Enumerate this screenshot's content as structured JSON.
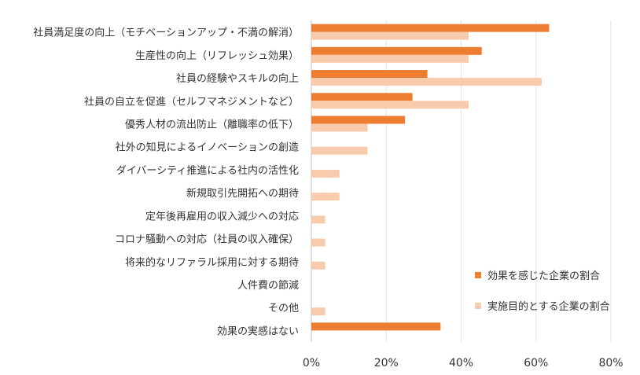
{
  "chart_data": {
    "type": "bar",
    "orientation": "horizontal",
    "categories": [
      "社員満足度の向上（モチベーションアップ・不満の解消）",
      "生産性の向上（リフレッシュ効果）",
      "社員の経験やスキルの向上",
      "社員の自立を促進（セルフマネジメントなど）",
      "優秀人材の流出防止（離職率の低下）",
      "社外の知見によるイノベーションの創造",
      "ダイバーシティ推進による社内の活性化",
      "新規取引先開拓への期待",
      "定年後再雇用の収入減少への対応",
      "コロナ騒動への対応（社員の収入確保）",
      "将来的なリファラル採用に対する期待",
      "人件費の節減",
      "その他",
      "効果の実感はない"
    ],
    "series": [
      {
        "name": "効果を感じた企業の割合",
        "color": "#ED7D31",
        "values": [
          63.5,
          45.5,
          31,
          27,
          25,
          0,
          0,
          0,
          0,
          0,
          0,
          0,
          0,
          34.5
        ]
      },
      {
        "name": "実施目的とする企業の割合",
        "color": "#F8CBAD",
        "values": [
          42,
          42,
          61.5,
          42,
          15,
          15,
          7.5,
          7.5,
          3.7,
          3.7,
          3.7,
          0,
          3.7,
          0
        ]
      }
    ],
    "x_ticks": [
      "0%",
      "20%",
      "40%",
      "60%",
      "80%"
    ],
    "xlim": [
      0,
      80
    ],
    "grid": true,
    "legend_position": "bottom-right"
  }
}
